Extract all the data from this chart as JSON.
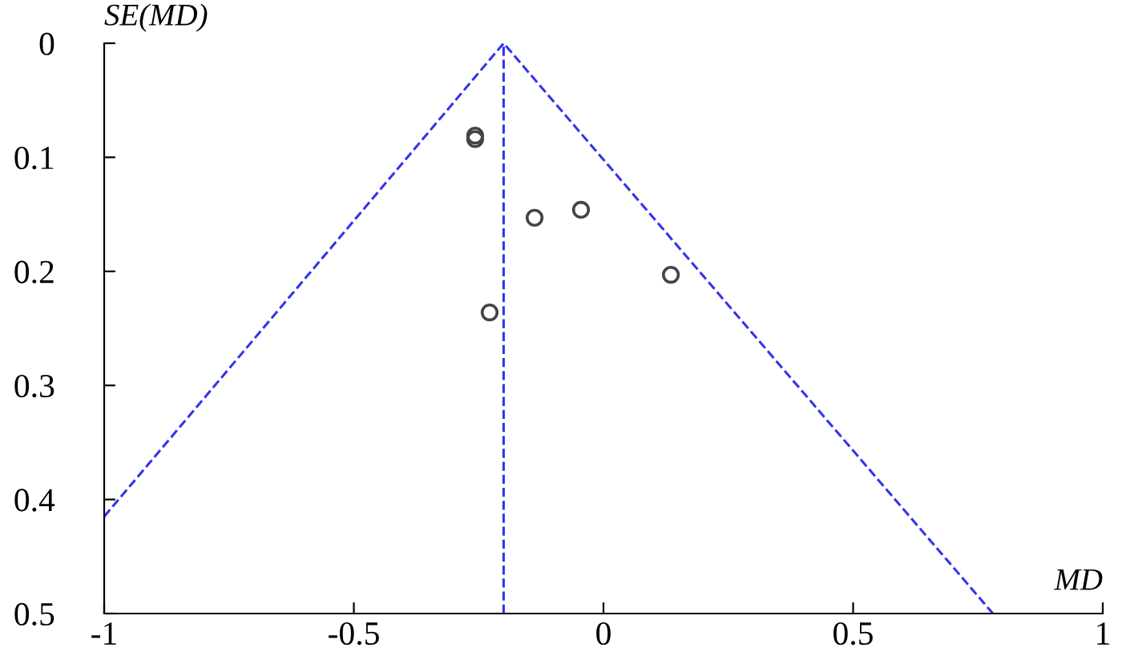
{
  "chart_data": {
    "type": "scatter",
    "xlabel": "MD",
    "ylabel": "SE(MD)",
    "xlim": [
      -1,
      1
    ],
    "ylim": [
      0.5,
      0
    ],
    "xticks": [
      -1,
      -0.5,
      0,
      0.5,
      1
    ],
    "yticks": [
      0,
      0.1,
      0.2,
      0.3,
      0.4,
      0.5
    ],
    "grid": false,
    "legend": false,
    "series": [
      {
        "marker": "circle",
        "color": "#444444",
        "x": [
          -0.257,
          -0.257,
          -0.138,
          -0.045,
          0.135,
          -0.228
        ],
        "values": [
          0.081,
          0.084,
          0.153,
          0.146,
          0.203,
          0.236
        ]
      },
      {
        "type": "line",
        "color": "#3333ee",
        "line_style": "dashed",
        "x": [
          -1,
          -0.2,
          0.78
        ],
        "values": [
          0.415,
          0,
          0.5
        ]
      }
    ],
    "ref_lines": [
      {
        "axis": "x",
        "value": -0.2,
        "color": "#3333ee",
        "line_style": "dashed"
      }
    ]
  }
}
